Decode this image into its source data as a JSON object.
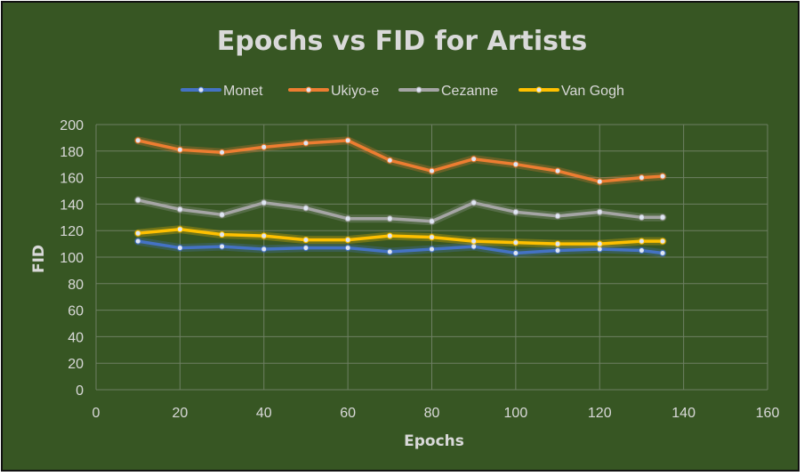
{
  "chart_data": {
    "type": "line",
    "title": "Epochs vs FID for Artists",
    "xlabel": "Epochs",
    "ylabel": "FID",
    "xlim": [
      0,
      160
    ],
    "ylim": [
      0,
      200
    ],
    "xticks": [
      0,
      20,
      40,
      60,
      80,
      100,
      120,
      140,
      160
    ],
    "yticks": [
      0,
      20,
      40,
      60,
      80,
      100,
      120,
      140,
      160,
      180,
      200
    ],
    "grid": true,
    "legend_position": "top",
    "x": [
      10,
      20,
      30,
      40,
      50,
      60,
      70,
      80,
      90,
      100,
      110,
      120,
      130,
      135
    ],
    "series": [
      {
        "name": "Monet",
        "color": "#4472c4",
        "values": [
          112,
          107,
          108,
          106,
          107,
          107,
          104,
          106,
          108,
          103,
          105,
          106,
          105,
          103
        ]
      },
      {
        "name": "Ukiyo-e",
        "color": "#ed7d31",
        "values": [
          188,
          181,
          179,
          183,
          186,
          188,
          173,
          165,
          174,
          170,
          165,
          157,
          160,
          161
        ]
      },
      {
        "name": "Cezanne",
        "color": "#a5a5a5",
        "values": [
          143,
          136,
          132,
          141,
          137,
          129,
          129,
          127,
          141,
          134,
          131,
          134,
          130,
          130
        ]
      },
      {
        "name": "Van Gogh",
        "color": "#ffc000",
        "values": [
          118,
          121,
          117,
          116,
          113,
          113,
          116,
          115,
          112,
          111,
          110,
          110,
          112,
          112
        ]
      }
    ]
  }
}
